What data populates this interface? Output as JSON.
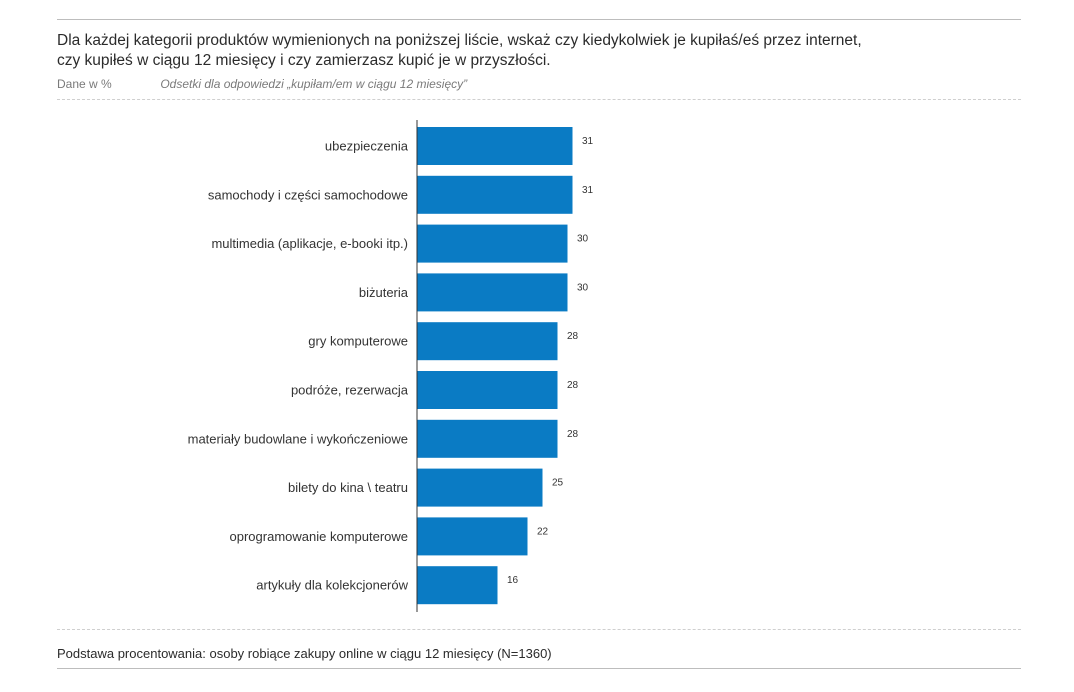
{
  "header": {
    "title_line1": "Dla każdej kategorii produktów wymienionych na poniższej liście, wskaż czy kiedykolwiek je kupiłaś/eś przez internet,",
    "title_line2": "czy kupiłeś w ciągu 12 miesięcy i czy zamierzasz kupić je w przyszłości.",
    "units": "Dane w %",
    "subtitle": "Odsetki dla odpowiedzi „kupiłam/em w ciągu 12 miesięcy”"
  },
  "footer": {
    "note": "Podstawa procentowania: osoby robiące zakupy online w ciągu 12 miesięcy (N=1360)"
  },
  "colors": {
    "bar": "#0a7bc4"
  },
  "chart_data": {
    "type": "bar",
    "orientation": "horizontal",
    "categories": [
      "ubezpieczenia",
      "samochody i części samochodowe",
      "multimedia (aplikacje, e-booki itp.)",
      "biżuteria",
      "gry komputerowe",
      "podróże, rezerwacja",
      "materiały budowlane i wykończeniowe",
      "bilety do kina \\ teatru",
      "oprogramowanie komputerowe",
      "artykuły dla kolekcjonerów"
    ],
    "values": [
      31,
      31,
      30,
      30,
      28,
      28,
      28,
      25,
      22,
      16
    ],
    "data_labels": [
      "31",
      "31",
      "30",
      "30",
      "28",
      "28",
      "28",
      "25",
      "22",
      "16"
    ],
    "title": "",
    "xlabel": "",
    "ylabel": "",
    "xlim": [
      0,
      100
    ],
    "grid": false,
    "legend": "none"
  }
}
